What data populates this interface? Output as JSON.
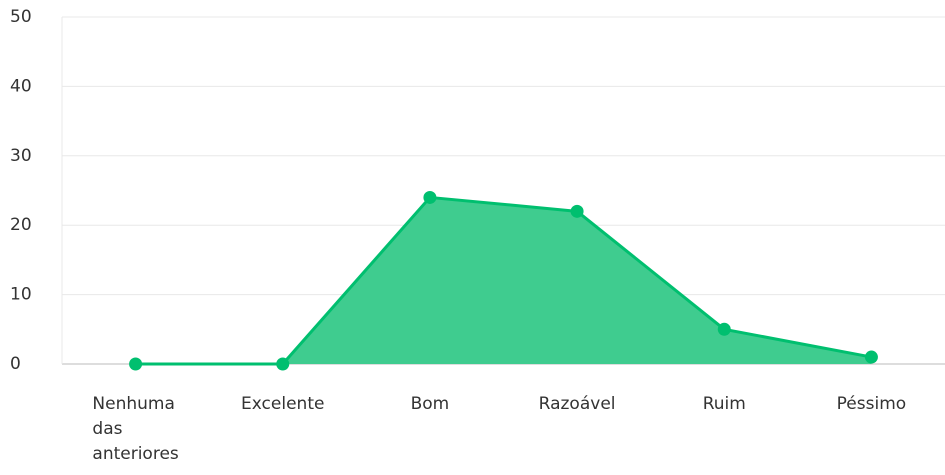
{
  "chart_data": {
    "type": "area",
    "categories": [
      "Nenhuma das anteriores",
      "Excelente",
      "Bom",
      "Razoável",
      "Ruim",
      "Péssimo"
    ],
    "values": [
      0,
      0,
      24,
      22,
      5,
      1
    ],
    "color": "#00bf6f",
    "fill_color": "#3fcc8f",
    "ylim": [
      0,
      50
    ],
    "yticks": [
      0,
      10,
      20,
      30,
      40,
      50
    ],
    "grid": true
  }
}
